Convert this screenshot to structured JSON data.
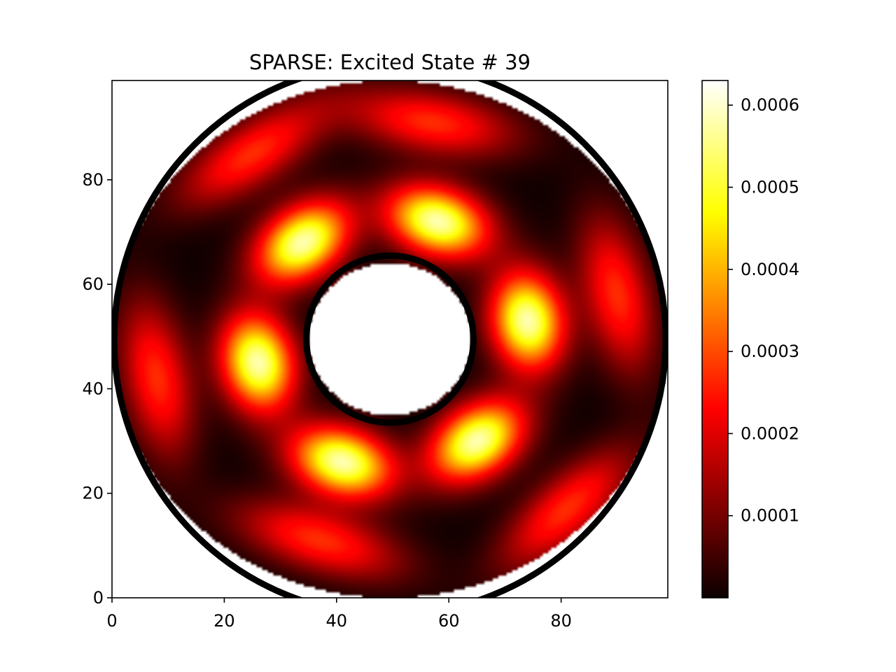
{
  "chart_data": {
    "type": "heatmap",
    "title": "SPARSE: Excited State # 39",
    "xlabel": "",
    "ylabel": "",
    "xlim": [
      0,
      99
    ],
    "ylim": [
      0,
      99
    ],
    "x_ticks": [
      0,
      20,
      40,
      60,
      80
    ],
    "y_ticks": [
      0,
      20,
      40,
      60,
      80
    ],
    "x_tick_labels": [
      "0",
      "20",
      "40",
      "60",
      "80"
    ],
    "y_tick_labels": [
      "0",
      "20",
      "40",
      "60",
      "80"
    ],
    "grid": false,
    "domain": {
      "shape": "annulus",
      "center": [
        49.5,
        49.5
      ],
      "inner_radius": 14.5,
      "outer_radius": 49.5
    },
    "colormap": "hot",
    "colorbar": {
      "vmin": 0.0,
      "vmax": 0.00063,
      "ticks": [
        0.0001,
        0.0002,
        0.0003,
        0.0004,
        0.0005,
        0.0006
      ],
      "tick_labels": [
        "0.0001",
        "0.0002",
        "0.0003",
        "0.0004",
        "0.0005",
        "0.0006"
      ]
    },
    "inner_ring_peaks": [
      {
        "x": 34,
        "y": 68,
        "value": 0.00058
      },
      {
        "x": 58,
        "y": 72,
        "value": 0.00058
      },
      {
        "x": 74,
        "y": 53,
        "value": 0.00058
      },
      {
        "x": 65,
        "y": 30,
        "value": 0.00058
      },
      {
        "x": 41,
        "y": 26,
        "value": 0.00058
      },
      {
        "x": 26,
        "y": 45,
        "value": 0.00058
      }
    ],
    "outer_ring_peaks": [
      {
        "x": 25,
        "y": 85,
        "value": 0.00027
      },
      {
        "x": 57,
        "y": 91,
        "value": 0.00027
      },
      {
        "x": 90,
        "y": 58,
        "value": 0.00027
      },
      {
        "x": 81,
        "y": 17,
        "value": 0.00027
      },
      {
        "x": 37,
        "y": 11,
        "value": 0.00027
      },
      {
        "x": 8,
        "y": 42,
        "value": 0.00027
      }
    ]
  }
}
